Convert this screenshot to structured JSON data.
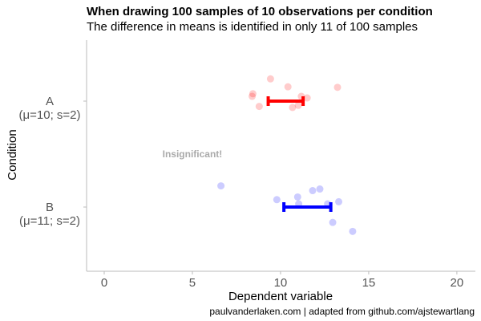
{
  "chart_data": {
    "type": "scatter",
    "title": "When drawing 100 samples of 10 observations per condition",
    "subtitle": "The difference in means is identified in only 11 of 100 samples",
    "caption": "paulvanderlaken.com | adapted from github.com/ajstewartlang",
    "xlabel": "Dependent variable",
    "ylabel": "Condition",
    "xlim": [
      -1,
      21.05
    ],
    "xticks": [
      0,
      5,
      10,
      15,
      20
    ],
    "grid": false,
    "categories": [
      {
        "line1": "A",
        "line2": "(μ=10; s=2)"
      },
      {
        "line1": "B",
        "line2": "(μ=11; s=2)"
      }
    ],
    "series": [
      {
        "color": "#ff0000",
        "values": [
          9.43,
          10.42,
          13.23,
          8.43,
          8.39,
          11.18,
          11.51,
          8.79,
          10.68,
          11.01
        ],
        "jitter": [
          -0.21,
          -0.135,
          -0.13,
          -0.07,
          -0.045,
          -0.045,
          -0.03,
          0.05,
          0.06,
          0.04
        ],
        "interval": [
          9.3,
          11.28
        ]
      },
      {
        "color": "#0000ff",
        "values": [
          6.62,
          9.79,
          10.97,
          11.03,
          11.82,
          12.23,
          12.67,
          13.3,
          12.96,
          14.09
        ],
        "jitter": [
          -0.2,
          -0.07,
          -0.095,
          -0.03,
          -0.155,
          -0.17,
          -0.03,
          -0.05,
          0.145,
          0.23
        ],
        "interval": [
          10.19,
          12.85
        ]
      }
    ],
    "annotation": {
      "text": "Insignificant!",
      "x": 5,
      "y": 1.5,
      "color": "#aaaaaa"
    }
  }
}
